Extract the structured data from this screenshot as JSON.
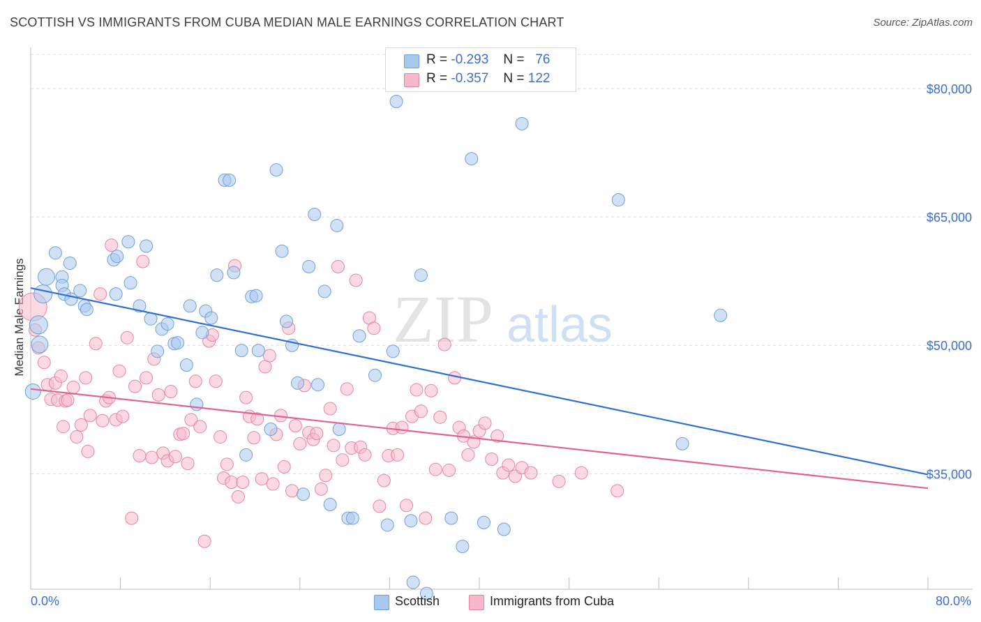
{
  "title": "SCOTTISH VS IMMIGRANTS FROM CUBA MEDIAN MALE EARNINGS CORRELATION CHART",
  "source": "Source: ZipAtlas.com",
  "watermark": {
    "zip": "ZIP",
    "atlas": "atlas"
  },
  "colors": {
    "blue_fill": "#a9c8ee",
    "blue_stroke": "#6f9fd8",
    "blue_line": "#2f6fd0",
    "pink_fill": "#f6b9cc",
    "pink_stroke": "#e8839f",
    "pink_line": "#e0628f",
    "tick_text": "#3d6fc8",
    "grid": "#dcdcdc"
  },
  "stats": {
    "rows": [
      {
        "r_label": "R =",
        "r_value": "-0.293",
        "n_label": "N =",
        "n_value": "76"
      },
      {
        "r_label": "R =",
        "r_value": "-0.357",
        "n_label": "N =",
        "n_value": "122"
      }
    ]
  },
  "legend": {
    "items": [
      "Scottish",
      "Immigrants from Cuba"
    ]
  },
  "chart_data": {
    "type": "scatter",
    "title": "SCOTTISH VS IMMIGRANTS FROM CUBA MEDIAN MALE EARNINGS CORRELATION CHART",
    "xlabel": "",
    "ylabel": "Median Male Earnings",
    "xlim": [
      0,
      80
    ],
    "ylim": [
      21500,
      84000
    ],
    "x_tick_labels": [
      "0.0%",
      "80.0%"
    ],
    "y_ticks": [
      35000,
      50000,
      65000,
      80000
    ],
    "y_tick_labels": [
      "$35,000",
      "$50,000",
      "$65,000",
      "$80,000"
    ],
    "grid": true,
    "legend_position": "bottom",
    "series": [
      {
        "name": "Scottish",
        "color": "#a9c8ee",
        "trend": {
          "x": [
            0,
            80
          ],
          "y": [
            56700,
            34900
          ]
        },
        "points": [
          [
            0.2,
            44600,
            11
          ],
          [
            0.7,
            52400,
            13
          ],
          [
            0.8,
            50100,
            12
          ],
          [
            1.1,
            56000,
            13
          ],
          [
            1.4,
            58000,
            12
          ],
          [
            2.2,
            60800,
            9
          ],
          [
            2.8,
            58000,
            9
          ],
          [
            2.8,
            57000,
            9
          ],
          [
            3.0,
            56000,
            9
          ],
          [
            3.5,
            59600,
            9
          ],
          [
            3.6,
            55400,
            9
          ],
          [
            4.4,
            56400,
            9
          ],
          [
            4.8,
            54600,
            9
          ],
          [
            5.0,
            54200,
            9
          ],
          [
            7.4,
            60000,
            9
          ],
          [
            7.7,
            60400,
            9
          ],
          [
            7.6,
            56000,
            9
          ],
          [
            8.7,
            62100,
            9
          ],
          [
            8.9,
            57300,
            9
          ],
          [
            9.7,
            54600,
            9
          ],
          [
            10.3,
            61600,
            9
          ],
          [
            10.7,
            53100,
            9
          ],
          [
            11.3,
            49300,
            9
          ],
          [
            11.7,
            51900,
            9
          ],
          [
            12.2,
            52500,
            9
          ],
          [
            12.8,
            50200,
            9
          ],
          [
            13.1,
            50300,
            9
          ],
          [
            13.9,
            47700,
            9
          ],
          [
            14.2,
            54600,
            9
          ],
          [
            14.8,
            43100,
            9
          ],
          [
            15.3,
            51500,
            9
          ],
          [
            15.6,
            54000,
            9
          ],
          [
            16.1,
            53200,
            9
          ],
          [
            16.6,
            58200,
            9
          ],
          [
            17.3,
            69300,
            9
          ],
          [
            17.7,
            69300,
            9
          ],
          [
            18.1,
            58500,
            9
          ],
          [
            18.8,
            49400,
            9
          ],
          [
            19.2,
            37200,
            9
          ],
          [
            19.7,
            55700,
            9
          ],
          [
            20.1,
            55800,
            9
          ],
          [
            20.3,
            49400,
            9
          ],
          [
            21.4,
            40200,
            9
          ],
          [
            21.9,
            70500,
            9
          ],
          [
            22.4,
            61000,
            9
          ],
          [
            22.8,
            52800,
            9
          ],
          [
            23.3,
            50000,
            9
          ],
          [
            23.8,
            45600,
            9
          ],
          [
            24.3,
            32600,
            9
          ],
          [
            24.8,
            59200,
            9
          ],
          [
            25.3,
            65300,
            9
          ],
          [
            25.6,
            45400,
            9
          ],
          [
            26.2,
            56300,
            9
          ],
          [
            26.7,
            31400,
            9
          ],
          [
            27.3,
            64000,
            9
          ],
          [
            27.5,
            40200,
            9
          ],
          [
            28.3,
            29800,
            9
          ],
          [
            28.7,
            29800,
            9
          ],
          [
            29.3,
            51100,
            9
          ],
          [
            30.7,
            46500,
            9
          ],
          [
            31.8,
            29000,
            9
          ],
          [
            32.3,
            49300,
            9
          ],
          [
            32.6,
            78500,
            9
          ],
          [
            33.9,
            29500,
            9
          ],
          [
            34.1,
            22300,
            9
          ],
          [
            34.8,
            58200,
            9
          ],
          [
            35.3,
            21000,
            9
          ],
          [
            37.5,
            29800,
            9
          ],
          [
            38.5,
            26500,
            9
          ],
          [
            39.3,
            71800,
            9
          ],
          [
            40.4,
            29300,
            9
          ],
          [
            42.2,
            28500,
            9
          ],
          [
            43.8,
            75900,
            9
          ],
          [
            52.4,
            67000,
            9
          ],
          [
            58.1,
            38500,
            9
          ],
          [
            61.5,
            53500,
            9
          ]
        ]
      },
      {
        "name": "Immigrants from Cuba",
        "color": "#f6b9cc",
        "trend": {
          "x": [
            0,
            80
          ],
          "y": [
            44900,
            33300
          ]
        },
        "points": [
          [
            0.2,
            54500,
            20
          ],
          [
            0.4,
            51800,
            9
          ],
          [
            0.7,
            49700,
            9
          ],
          [
            1.2,
            48000,
            9
          ],
          [
            1.5,
            45400,
            9
          ],
          [
            1.8,
            43700,
            9
          ],
          [
            2.2,
            45600,
            9
          ],
          [
            2.4,
            43600,
            9
          ],
          [
            2.7,
            46400,
            9
          ],
          [
            2.9,
            40500,
            9
          ],
          [
            3.1,
            43500,
            9
          ],
          [
            3.3,
            43600,
            9
          ],
          [
            3.8,
            45100,
            9
          ],
          [
            4.1,
            39300,
            9
          ],
          [
            4.5,
            40700,
            9
          ],
          [
            4.9,
            46200,
            9
          ],
          [
            5.1,
            37600,
            9
          ],
          [
            5.3,
            41800,
            9
          ],
          [
            5.8,
            50200,
            9
          ],
          [
            6.2,
            56000,
            9
          ],
          [
            6.4,
            41200,
            9
          ],
          [
            6.7,
            43500,
            9
          ],
          [
            7.0,
            43900,
            9
          ],
          [
            7.2,
            61700,
            9
          ],
          [
            7.6,
            41300,
            9
          ],
          [
            7.9,
            47000,
            9
          ],
          [
            8.2,
            41700,
            9
          ],
          [
            8.6,
            50900,
            9
          ],
          [
            9.0,
            29800,
            9
          ],
          [
            9.3,
            45200,
            9
          ],
          [
            9.7,
            37100,
            9
          ],
          [
            10.0,
            59800,
            9
          ],
          [
            10.3,
            46200,
            9
          ],
          [
            10.8,
            36900,
            9
          ],
          [
            11.0,
            48400,
            9
          ],
          [
            11.4,
            44200,
            9
          ],
          [
            11.8,
            37400,
            9
          ],
          [
            12.2,
            36500,
            9
          ],
          [
            12.5,
            44600,
            9
          ],
          [
            12.9,
            37000,
            9
          ],
          [
            13.3,
            39600,
            9
          ],
          [
            13.6,
            39700,
            9
          ],
          [
            14.0,
            36200,
            9
          ],
          [
            14.3,
            41300,
            9
          ],
          [
            14.7,
            45800,
            9
          ],
          [
            15.1,
            40500,
            9
          ],
          [
            15.5,
            27100,
            9
          ],
          [
            15.9,
            50500,
            9
          ],
          [
            16.2,
            51200,
            9
          ],
          [
            16.5,
            45800,
            9
          ],
          [
            16.9,
            39300,
            9
          ],
          [
            17.2,
            34500,
            9
          ],
          [
            17.5,
            36100,
            9
          ],
          [
            17.9,
            34000,
            9
          ],
          [
            18.2,
            59300,
            9
          ],
          [
            18.5,
            32300,
            9
          ],
          [
            18.9,
            34000,
            9
          ],
          [
            19.2,
            43900,
            9
          ],
          [
            19.5,
            41700,
            9
          ],
          [
            19.9,
            39200,
            9
          ],
          [
            20.2,
            41400,
            9
          ],
          [
            20.6,
            34400,
            9
          ],
          [
            20.9,
            47500,
            9
          ],
          [
            21.3,
            48800,
            9
          ],
          [
            21.6,
            33800,
            9
          ],
          [
            21.9,
            39600,
            9
          ],
          [
            22.3,
            41800,
            9
          ],
          [
            22.6,
            35800,
            9
          ],
          [
            23.0,
            52000,
            9
          ],
          [
            23.3,
            33000,
            9
          ],
          [
            23.6,
            40600,
            9
          ],
          [
            24.0,
            38500,
            9
          ],
          [
            24.4,
            45300,
            9
          ],
          [
            24.8,
            39800,
            9
          ],
          [
            25.2,
            39000,
            9
          ],
          [
            25.5,
            39700,
            9
          ],
          [
            25.9,
            33200,
            9
          ],
          [
            26.3,
            34800,
            9
          ],
          [
            26.7,
            42600,
            9
          ],
          [
            27.0,
            38300,
            9
          ],
          [
            27.4,
            59200,
            9
          ],
          [
            27.8,
            36600,
            9
          ],
          [
            28.2,
            44900,
            9
          ],
          [
            28.6,
            38000,
            9
          ],
          [
            29.0,
            57600,
            9
          ],
          [
            29.4,
            38100,
            9
          ],
          [
            29.8,
            37200,
            9
          ],
          [
            30.2,
            53200,
            9
          ],
          [
            30.6,
            52000,
            9
          ],
          [
            31.1,
            31200,
            9
          ],
          [
            31.5,
            34200,
            9
          ],
          [
            31.9,
            37100,
            9
          ],
          [
            32.3,
            40300,
            9
          ],
          [
            32.7,
            37200,
            9
          ],
          [
            33.1,
            40400,
            9
          ],
          [
            33.5,
            31300,
            9
          ],
          [
            34.0,
            41700,
            9
          ],
          [
            34.4,
            44800,
            9
          ],
          [
            34.8,
            42300,
            9
          ],
          [
            35.2,
            29800,
            9
          ],
          [
            35.7,
            44700,
            9
          ],
          [
            36.1,
            35500,
            9
          ],
          [
            36.5,
            41600,
            9
          ],
          [
            36.9,
            50100,
            9
          ],
          [
            37.3,
            35400,
            9
          ],
          [
            37.8,
            46200,
            9
          ],
          [
            38.2,
            40400,
            9
          ],
          [
            38.6,
            39400,
            9
          ],
          [
            39.0,
            37200,
            9
          ],
          [
            39.5,
            38700,
            9
          ],
          [
            40.0,
            40000,
            9
          ],
          [
            40.5,
            40900,
            9
          ],
          [
            41.1,
            36700,
            9
          ],
          [
            41.6,
            39400,
            9
          ],
          [
            42.1,
            35100,
            9
          ],
          [
            42.6,
            36000,
            9
          ],
          [
            43.2,
            34700,
            9
          ],
          [
            43.8,
            35700,
            9
          ],
          [
            44.6,
            35100,
            9
          ],
          [
            47.1,
            34100,
            9
          ],
          [
            49.1,
            35100,
            9
          ],
          [
            52.3,
            33000,
            9
          ]
        ]
      }
    ]
  }
}
